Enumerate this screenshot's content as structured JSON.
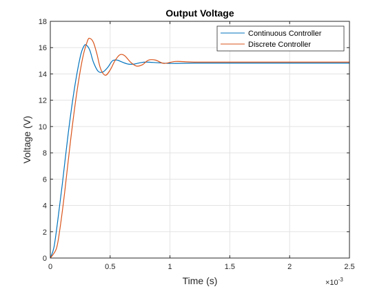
{
  "chart_data": {
    "type": "line",
    "title": "Output Voltage",
    "xlabel": "Time (s)",
    "ylabel": "Voltage (V)",
    "x_exponent_base": "×10",
    "x_exponent_power": "-3",
    "xlim": [
      0,
      2.5
    ],
    "ylim": [
      0,
      18
    ],
    "x_ticks": [
      0,
      0.5,
      1,
      1.5,
      2,
      2.5
    ],
    "x_tick_labels": [
      "0",
      "0.5",
      "1",
      "1.5",
      "2",
      "2.5"
    ],
    "y_ticks": [
      0,
      2,
      4,
      6,
      8,
      10,
      12,
      14,
      16,
      18
    ],
    "y_tick_labels": [
      "0",
      "2",
      "4",
      "6",
      "8",
      "10",
      "12",
      "14",
      "16",
      "18"
    ],
    "grid": true,
    "legend_position": "top-right",
    "series": [
      {
        "name": "Continuous Controller",
        "color": "#0072BD",
        "x": [
          0,
          0.03,
          0.06,
          0.1,
          0.15,
          0.2,
          0.25,
          0.28,
          0.3,
          0.33,
          0.36,
          0.4,
          0.44,
          0.48,
          0.52,
          0.56,
          0.6,
          0.65,
          0.7,
          0.75,
          0.8,
          0.9,
          1.0,
          1.2,
          1.5,
          2.0,
          2.5
        ],
        "y": [
          0,
          0.8,
          2.7,
          5.6,
          9.5,
          12.8,
          15.3,
          16.1,
          16.2,
          15.8,
          14.9,
          14.2,
          14.15,
          14.5,
          15.0,
          15.05,
          14.9,
          14.75,
          14.75,
          14.85,
          14.9,
          14.85,
          14.8,
          14.82,
          14.82,
          14.82,
          14.82
        ]
      },
      {
        "name": "Discrete Controller",
        "color": "#D95319",
        "x": [
          0,
          0.05,
          0.08,
          0.12,
          0.17,
          0.22,
          0.27,
          0.31,
          0.33,
          0.36,
          0.39,
          0.42,
          0.46,
          0.5,
          0.54,
          0.58,
          0.62,
          0.67,
          0.72,
          0.77,
          0.82,
          0.88,
          0.95,
          1.05,
          1.2,
          1.5,
          2.0,
          2.5
        ],
        "y": [
          0,
          0.7,
          2.2,
          5.0,
          9.0,
          12.5,
          15.2,
          16.5,
          16.7,
          16.4,
          15.5,
          14.4,
          13.9,
          14.3,
          15.0,
          15.45,
          15.4,
          14.9,
          14.6,
          14.7,
          15.05,
          15.05,
          14.8,
          14.95,
          14.9,
          14.9,
          14.9,
          14.9
        ]
      }
    ]
  }
}
